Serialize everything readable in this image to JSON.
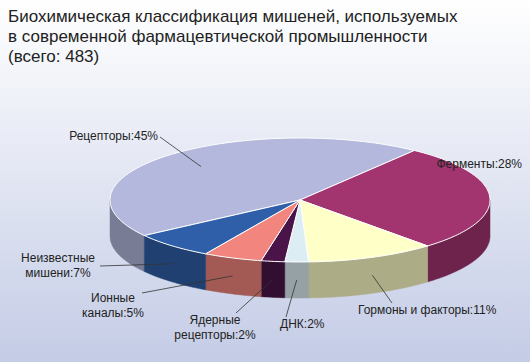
{
  "chart_data": {
    "type": "pie",
    "title": "Биохимическая классификация мишеней, используемых в современной фармацевтической промышленности (всего: 483)",
    "categories": [
      "Рецепторы",
      "Ферменты",
      "Гормоны и факторы",
      "ДНК",
      "Ядерные рецепторы",
      "Ионные каналы",
      "Неизвестные мишени"
    ],
    "values": [
      45,
      28,
      11,
      2,
      2,
      5,
      7
    ],
    "value_labels": [
      "45%",
      "28%",
      "11%",
      "2%",
      "2%",
      "5%",
      "7%"
    ],
    "colors": [
      "#b3b8dc",
      "#a23470",
      "#ffffc8",
      "#dceef4",
      "#4a1448",
      "#f2857e",
      "#2f5fa8"
    ],
    "data_labels": true
  }
}
